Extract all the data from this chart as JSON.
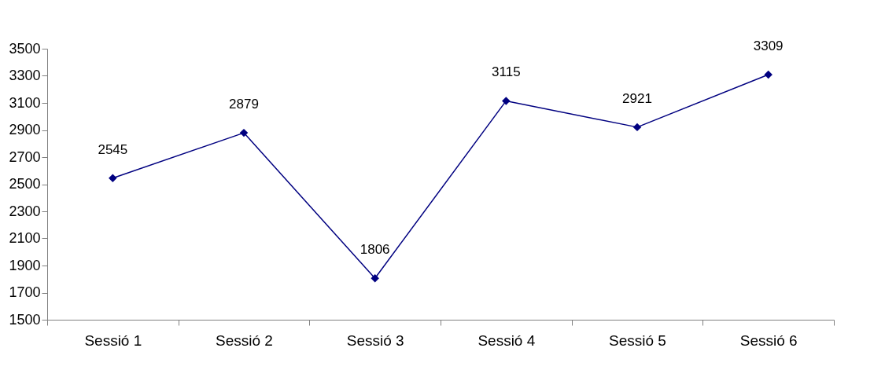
{
  "chart_data": {
    "type": "line",
    "categories": [
      "Sessió 1",
      "Sessió 2",
      "Sessió 3",
      "Sessió 4",
      "Sessió 5",
      "Sessió 6"
    ],
    "series": [
      {
        "color": "#000080",
        "values": [
          2545,
          2879,
          1806,
          3115,
          2921,
          3309
        ]
      }
    ],
    "ylim": [
      1500,
      3500
    ],
    "yticks": [
      1500,
      1700,
      1900,
      2100,
      2300,
      2500,
      2700,
      2900,
      3100,
      3300,
      3500
    ],
    "grid": false,
    "legend": false,
    "marker": "diamond",
    "line_style": "solid",
    "data_labels": true
  }
}
